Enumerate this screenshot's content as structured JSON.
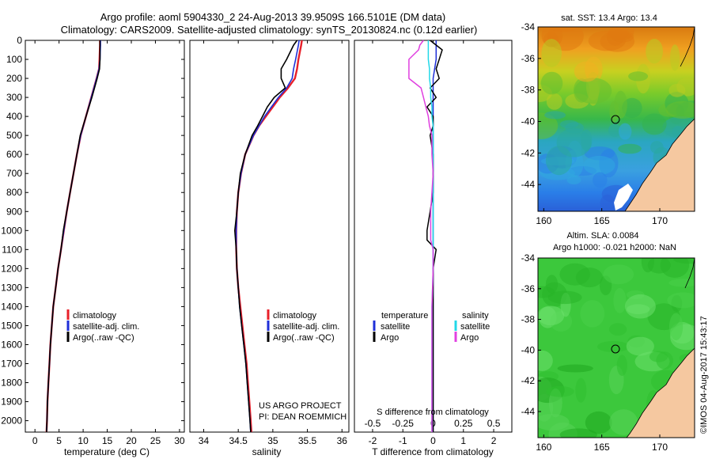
{
  "header": {
    "title_line1": "Argo profile: aoml 5904330_2 24-Aug-2013 39.9509S 166.5101E (DM data)",
    "title_line2": "Climatology: CARS2009. Satellite-adjusted climatology: synTS_20130824.nc (0.12d earlier)"
  },
  "credit": {
    "project": "US ARGO PROJECT",
    "pi": "PI: DEAN ROEMMICH",
    "imos": "©IMOS 04-Aug-2017 15:43:17"
  },
  "colors": {
    "climatology": "#e8202a",
    "satellite": "#1f2fd8",
    "argo": "#000000",
    "argo_salinity": "#e040e0",
    "satellite_salinity": "#22d8e8",
    "land": "#f5c8a0",
    "no_data": "#ffffff"
  },
  "chart_data": [
    {
      "type": "line",
      "id": "temperature",
      "xlabel": "temperature (deg C)",
      "xlim": [
        -2,
        31
      ],
      "ylim": [
        2060,
        0
      ],
      "xticks": [
        0,
        5,
        10,
        15,
        20,
        25,
        30
      ],
      "yticks": [
        0,
        100,
        200,
        300,
        400,
        500,
        600,
        700,
        800,
        900,
        1000,
        1100,
        1200,
        1300,
        1400,
        1500,
        1600,
        1700,
        1800,
        1900,
        2000
      ],
      "legend": [
        "climatology",
        "satellite-adj. clim.",
        "Argo(..raw -QC)"
      ],
      "legend_position": "lower-center",
      "y": [
        0,
        25,
        100,
        150,
        200,
        300,
        400,
        500,
        600,
        700,
        800,
        900,
        1000,
        1100,
        1200,
        1300,
        1400,
        1500,
        1600,
        1700,
        1800,
        1900,
        2000,
        2060
      ],
      "series": [
        {
          "name": "climatology",
          "values": [
            13.5,
            13.5,
            13.4,
            13.3,
            12.8,
            11.7,
            10.6,
            9.5,
            8.7,
            8.0,
            7.3,
            6.6,
            6.0,
            5.4,
            4.8,
            4.3,
            3.8,
            3.5,
            3.2,
            3.0,
            2.8,
            2.6,
            2.5,
            2.4
          ]
        },
        {
          "name": "satellite-adj. clim.",
          "values": [
            13.6,
            13.6,
            13.5,
            13.3,
            12.8,
            11.7,
            10.6,
            9.5,
            8.7,
            8.0,
            7.3,
            6.6,
            6.0,
            5.4,
            4.8,
            4.3,
            3.8,
            3.5,
            3.2,
            3.0,
            2.8,
            2.6,
            2.5,
            2.4
          ]
        },
        {
          "name": "Argo(..raw -QC)",
          "values": [
            13.5,
            13.5,
            13.5,
            13.4,
            12.9,
            11.8,
            10.6,
            9.4,
            8.7,
            8.0,
            7.3,
            6.6,
            5.9,
            5.4,
            4.8,
            4.3,
            3.8,
            3.5,
            3.2,
            3.0,
            2.8,
            2.6,
            2.5,
            2.4
          ]
        }
      ]
    },
    {
      "type": "line",
      "id": "salinity",
      "xlabel": "salinity",
      "xlim": [
        33.8,
        36.1
      ],
      "ylim": [
        2060,
        0
      ],
      "xticks": [
        34,
        34.5,
        35,
        35.5,
        36
      ],
      "legend": [
        "climatology",
        "satellite-adj. clim.",
        "Argo(..raw -QC)"
      ],
      "legend_position": "lower-center",
      "y": [
        0,
        25,
        100,
        150,
        200,
        250,
        300,
        350,
        400,
        450,
        500,
        600,
        700,
        800,
        900,
        1000,
        1100,
        1200,
        1300,
        1400,
        1500,
        1600,
        1700,
        1800,
        1900,
        2000,
        2060
      ],
      "series": [
        {
          "name": "climatology",
          "values": [
            35.42,
            35.41,
            35.37,
            35.35,
            35.32,
            35.22,
            35.1,
            35.0,
            34.9,
            34.8,
            34.72,
            34.6,
            34.54,
            34.5,
            34.48,
            34.47,
            34.47,
            34.48,
            34.5,
            34.53,
            34.56,
            34.59,
            34.62,
            34.64,
            34.66,
            34.68,
            34.69
          ]
        },
        {
          "name": "satellite-adj. clim.",
          "values": [
            35.38,
            35.37,
            35.33,
            35.3,
            35.28,
            35.2,
            35.08,
            34.98,
            34.88,
            34.8,
            34.72,
            34.6,
            34.54,
            34.5,
            34.48,
            34.47,
            34.47,
            34.48,
            34.5,
            34.52,
            34.55,
            34.58,
            34.61,
            34.63,
            34.65,
            34.67,
            34.68
          ]
        },
        {
          "name": "Argo(..raw -QC)",
          "values": [
            35.35,
            35.3,
            35.2,
            35.12,
            35.12,
            35.18,
            35.02,
            34.92,
            34.85,
            34.78,
            34.7,
            34.6,
            34.53,
            34.5,
            34.48,
            34.45,
            34.47,
            34.48,
            34.5,
            34.52,
            34.55,
            34.58,
            34.61,
            34.63,
            34.65,
            34.67,
            34.68
          ]
        }
      ]
    },
    {
      "type": "line",
      "id": "difference",
      "xlabel": "T difference from climatology",
      "xlabel_top": "S difference from climatology",
      "xlim": [
        -2.6,
        2.6
      ],
      "ylim": [
        2060,
        0
      ],
      "xticks": [
        -2,
        -1,
        0,
        1,
        2
      ],
      "xticks_top": [
        -0.5,
        -0.25,
        0,
        0.25,
        0.5
      ],
      "xticks_top_labels": [
        "-0.5",
        "-0.25",
        "0",
        "0.25",
        "0.5"
      ],
      "legend_temperature_header": "temperature",
      "legend_salinity_header": "salinity",
      "legend": [
        "satellite",
        "Argo",
        "satellite",
        "Argo"
      ],
      "legend_position": "lower-center",
      "y": [
        0,
        25,
        50,
        100,
        150,
        200,
        250,
        300,
        350,
        400,
        450,
        500,
        600,
        700,
        800,
        900,
        1000,
        1050,
        1100,
        1200,
        1400,
        1600,
        1800,
        2000,
        2060
      ],
      "series": [
        {
          "name": "satellite",
          "group": "temperature",
          "values": [
            0.1,
            0.1,
            0.1,
            0.1,
            0.05,
            0.0,
            0.0,
            0.0,
            0.0,
            0.0,
            0.0,
            0.0,
            0.0,
            0.0,
            0.0,
            0.0,
            0.0,
            0.0,
            0.0,
            0.0,
            0.0,
            0.0,
            0.0,
            0.0,
            0.0
          ]
        },
        {
          "name": "Argo",
          "group": "temperature",
          "values": [
            -0.1,
            0.1,
            0.3,
            0.2,
            0.1,
            0.2,
            -0.1,
            0.1,
            -0.2,
            0.0,
            0.0,
            -0.1,
            0.0,
            0.0,
            0.0,
            -0.1,
            -0.2,
            -0.2,
            0.1,
            0.0,
            0.0,
            0.0,
            0.0,
            0.0,
            0.0
          ]
        },
        {
          "name": "satellite",
          "group": "salinity",
          "values": [
            -0.04,
            -0.04,
            -0.04,
            -0.04,
            -0.03,
            -0.03,
            -0.02,
            -0.02,
            -0.01,
            -0.01,
            0.0,
            0.0,
            0.0,
            0.0,
            0.0,
            0.0,
            0.0,
            0.0,
            0.0,
            0.0,
            -0.01,
            -0.01,
            -0.01,
            -0.01,
            -0.01
          ]
        },
        {
          "name": "Argo",
          "group": "salinity",
          "values": [
            -0.08,
            -0.11,
            -0.12,
            -0.2,
            -0.2,
            -0.2,
            -0.1,
            -0.08,
            -0.06,
            -0.04,
            -0.03,
            -0.01,
            -0.01,
            0.0,
            -0.01,
            -0.02,
            -0.02,
            -0.02,
            0.0,
            0.0,
            -0.01,
            -0.01,
            -0.01,
            -0.01,
            -0.01
          ]
        }
      ]
    },
    {
      "type": "heatmap",
      "id": "sst_map",
      "title": "sat. SST: 13.4  Argo: 13.4",
      "xlim": [
        159.5,
        173.0
      ],
      "ylim": [
        -45.7,
        -34
      ],
      "xticks": [
        160,
        165,
        170
      ],
      "yticks": [
        -34,
        -36,
        -38,
        -40,
        -42,
        -44
      ],
      "marker": {
        "lon": 166.51,
        "lat": -39.95
      }
    },
    {
      "type": "heatmap",
      "id": "sla_map",
      "title_line1": "Altim. SLA: 0.0084",
      "title_line2": "Argo h1000: -0.021 h2000: NaN",
      "xlim": [
        159.5,
        173.0
      ],
      "ylim": [
        -45.7,
        -34
      ],
      "xticks": [
        160,
        165,
        170
      ],
      "yticks": [
        -34,
        -36,
        -38,
        -40,
        -42,
        -44
      ],
      "marker": {
        "lon": 166.51,
        "lat": -39.95
      }
    }
  ]
}
